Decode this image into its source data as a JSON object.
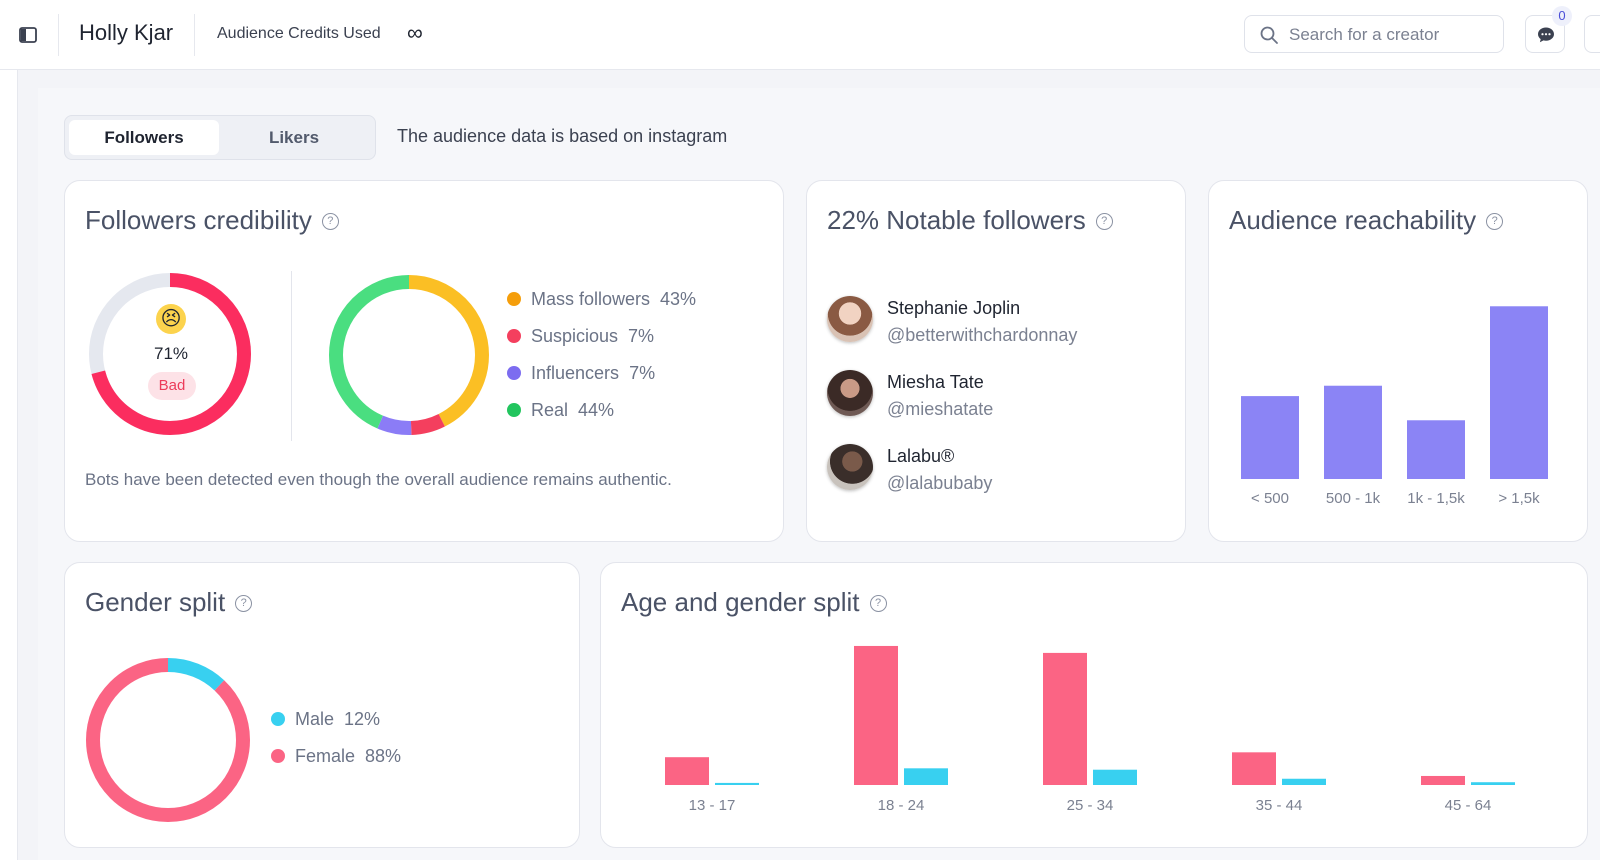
{
  "header": {
    "creator_name": "Holly Kjar",
    "credits_label": "Audience Credits Used",
    "credits_value": "∞",
    "search_placeholder": "Search for a creator",
    "notifications_count": "0"
  },
  "tabs": [
    {
      "label": "Followers",
      "active": true
    },
    {
      "label": "Likers",
      "active": false
    }
  ],
  "tabs_note": "The audience data is based on instagram",
  "credibility": {
    "title": "Followers credibility",
    "score_emoji": "😣",
    "score": "71%",
    "score_value": 0.71,
    "badge": "Bad",
    "note": "Bots have been detected even though the overall audience remains authentic.",
    "segments": [
      {
        "label": "Mass followers",
        "pct": "43%",
        "value": 43,
        "color": "#fbbf24"
      },
      {
        "label": "Suspicious",
        "pct": "7%",
        "value": 7,
        "color": "#f43f5e"
      },
      {
        "label": "Influencers",
        "pct": "7%",
        "value": 7,
        "color": "#8b7cf6"
      },
      {
        "label": "Real",
        "pct": "44%",
        "value": 44,
        "color": "#4ade80"
      }
    ],
    "legend_colors": [
      "#f59e0b",
      "#f43f5e",
      "#7c6cf0",
      "#22c55e"
    ]
  },
  "notable": {
    "title": "22% Notable followers",
    "people": [
      {
        "name": "Stephanie Joplin",
        "handle": "@betterwithchardonnay"
      },
      {
        "name": "Miesha Tate",
        "handle": "@mieshatate"
      },
      {
        "name": "Lalabu®",
        "handle": "@lalabubaby"
      }
    ]
  },
  "reachability": {
    "title": "Audience reachability",
    "chart_data": {
      "type": "bar",
      "categories": [
        "< 500",
        "500 - 1k",
        "1k - 1,5k",
        "> 1,5k"
      ],
      "values": [
        24,
        27,
        17,
        50
      ],
      "ylim": [
        0,
        55
      ],
      "color": "#8b84f5"
    }
  },
  "gender": {
    "title": "Gender split",
    "segments": [
      {
        "label": "Male",
        "pct": "12%",
        "value": 12,
        "color": "#38d0f0"
      },
      {
        "label": "Female",
        "pct": "88%",
        "value": 88,
        "color": "#fb6484"
      }
    ]
  },
  "age_gender": {
    "title": "Age and gender split",
    "chart_data": {
      "type": "bar",
      "categories": [
        "13 - 17",
        "18 - 24",
        "25 - 34",
        "35 - 44",
        "45 - 64"
      ],
      "series": [
        {
          "values": [
            4,
            20,
            19,
            4.7,
            1.3
          ],
          "color": "#fb6484"
        },
        {
          "values": [
            0.3,
            2.4,
            2.2,
            0.9,
            0.4
          ],
          "color": "#38d0f0"
        }
      ],
      "ylim": [
        0,
        21
      ]
    }
  }
}
